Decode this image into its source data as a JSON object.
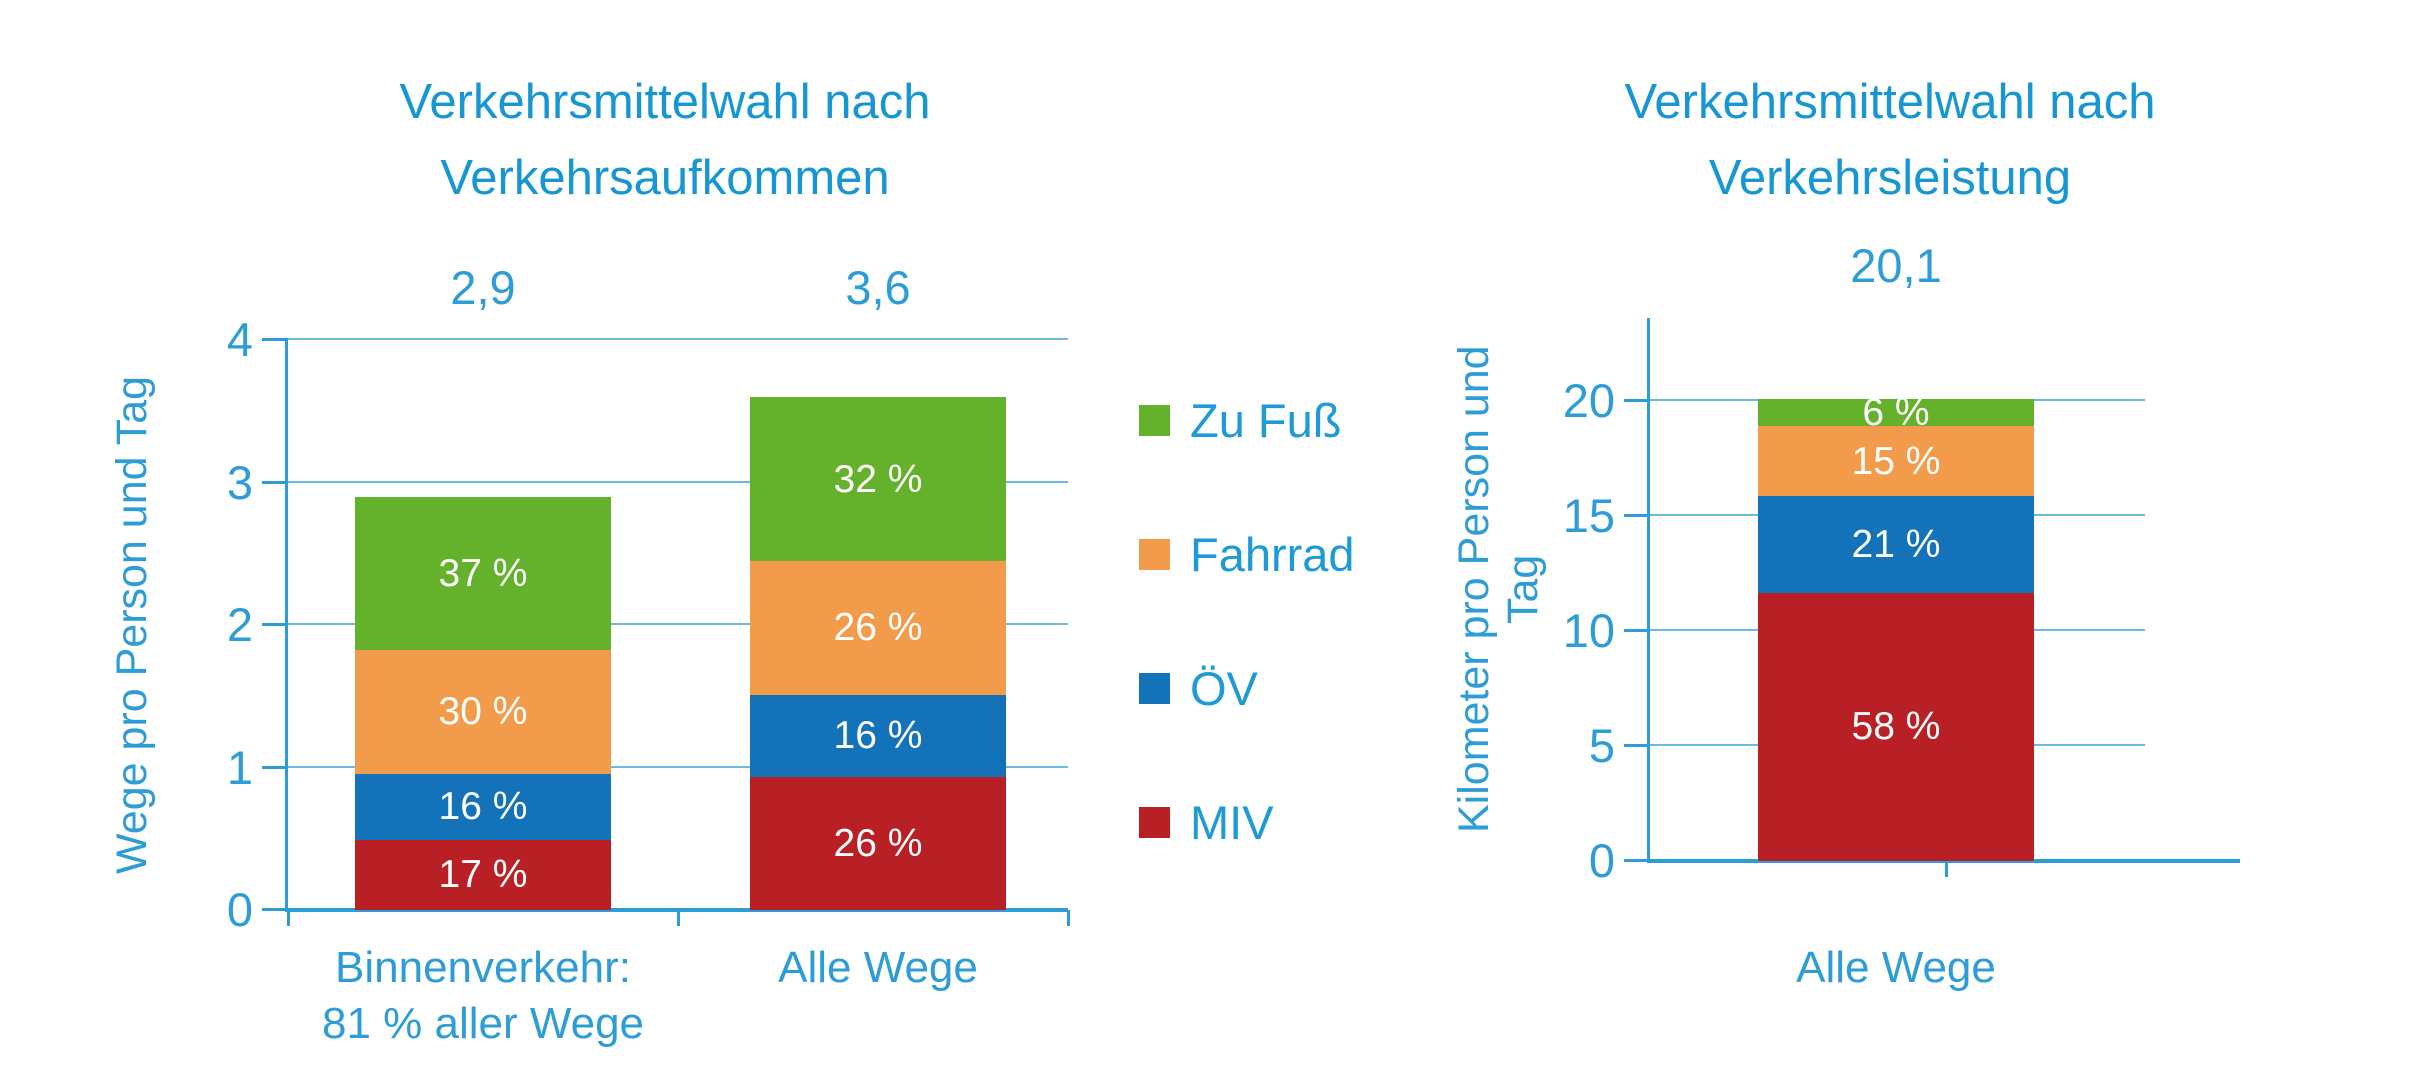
{
  "page": {
    "background": "#FFFFFF"
  },
  "colors": {
    "accent_blue_text": "#1E9AD6",
    "axis_blue": "#2E9CD6",
    "gridline_blue": "#6CB9E2",
    "segment_label_text": "#FFFFFF",
    "zu_fuss_green": "#64B22C",
    "fahrrad_orange": "#F29C4B",
    "oev_blue": "#1473B8",
    "miv_red": "#B92025"
  },
  "legend": [
    {
      "label": "Zu Fuß",
      "color": "#64B22C"
    },
    {
      "label": "Fahrrad",
      "color": "#F29C4B"
    },
    {
      "label": "ÖV",
      "color": "#1473B8"
    },
    {
      "label": "MIV",
      "color": "#B92025"
    }
  ],
  "chart_data": [
    {
      "type": "bar",
      "stacked": true,
      "title": "Verkehrsmittelwahl nach Verkehrsaufkommen",
      "ylabel": "Wege pro Person und Tag",
      "ylim": [
        0,
        4
      ],
      "yticks": [
        0,
        1,
        2,
        3,
        4
      ],
      "grid": true,
      "legend_position": "right",
      "categories": [
        {
          "label_lines": [
            "Binnenverkehr:",
            "81 % aller Wege"
          ],
          "total_label": "2,9",
          "total_value": 2.9,
          "segments": [
            {
              "name": "MIV",
              "percent": 17,
              "label": "17 %"
            },
            {
              "name": "ÖV",
              "percent": 16,
              "label": "16 %"
            },
            {
              "name": "Fahrrad",
              "percent": 30,
              "label": "30 %"
            },
            {
              "name": "Zu Fuß",
              "percent": 37,
              "label": "37 %"
            }
          ]
        },
        {
          "label_lines": [
            "Alle Wege"
          ],
          "total_label": "3,6",
          "total_value": 3.6,
          "segments": [
            {
              "name": "MIV",
              "percent": 26,
              "label": "26 %"
            },
            {
              "name": "ÖV",
              "percent": 16,
              "label": "16 %"
            },
            {
              "name": "Fahrrad",
              "percent": 26,
              "label": "26 %"
            },
            {
              "name": "Zu Fuß",
              "percent": 32,
              "label": "32 %"
            }
          ]
        }
      ]
    },
    {
      "type": "bar",
      "stacked": true,
      "title": "Verkehrsmittelwahl nach Verkehrsleistung",
      "ylabel": "Kilometer pro Person und Tag",
      "ylim": [
        0,
        20
      ],
      "yticks": [
        0,
        5,
        10,
        15,
        20
      ],
      "grid": true,
      "categories": [
        {
          "label_lines": [
            "Alle Wege"
          ],
          "total_label": "20,1",
          "total_value": 20.1,
          "segments": [
            {
              "name": "MIV",
              "percent": 58,
              "label": "58 %"
            },
            {
              "name": "ÖV",
              "percent": 21,
              "label": "21 %"
            },
            {
              "name": "Fahrrad",
              "percent": 15,
              "label": "15 %"
            },
            {
              "name": "Zu Fuß",
              "percent": 6,
              "label": "6 %"
            }
          ]
        }
      ]
    }
  ]
}
